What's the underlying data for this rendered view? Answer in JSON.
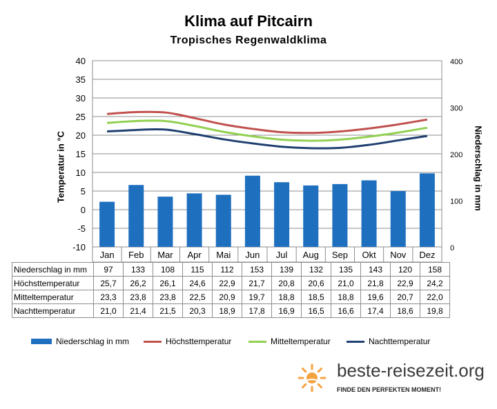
{
  "title": "Klima auf Pitcairn",
  "subtitle": "Tropisches Regenwaldklima",
  "chart_data": {
    "type": "bar",
    "categories": [
      "Jan",
      "Feb",
      "Mar",
      "Apr",
      "Mai",
      "Jun",
      "Jul",
      "Aug",
      "Sep",
      "Okt",
      "Nov",
      "Dez"
    ],
    "series": [
      {
        "name": "Niederschlag in mm",
        "type": "bar",
        "axis": "right",
        "color": "#1f6fbf",
        "values": [
          97,
          133,
          108,
          115,
          112,
          153,
          139,
          132,
          135,
          143,
          120,
          158
        ]
      },
      {
        "name": "Höchsttemperatur",
        "type": "line",
        "axis": "left",
        "color": "#c0504d",
        "values": [
          25.7,
          26.2,
          26.1,
          24.6,
          22.9,
          21.7,
          20.8,
          20.6,
          21.0,
          21.8,
          22.9,
          24.2
        ]
      },
      {
        "name": "Mitteltemperatur",
        "type": "line",
        "axis": "left",
        "color": "#92d050",
        "values": [
          23.3,
          23.8,
          23.8,
          22.5,
          20.9,
          19.7,
          18.8,
          18.5,
          18.8,
          19.6,
          20.7,
          22.0
        ]
      },
      {
        "name": "Nachttemperatur",
        "type": "line",
        "axis": "left",
        "color": "#1f3f6f",
        "values": [
          21.0,
          21.4,
          21.5,
          20.3,
          18.9,
          17.8,
          16.9,
          16.5,
          16.6,
          17.4,
          18.6,
          19.8
        ]
      }
    ],
    "ylabel_left": "Temperatur in °C",
    "ylabel_right": "Niederschlag in mm",
    "ylim_left": [
      -10,
      40
    ],
    "ylim_right": [
      0,
      400
    ],
    "yticks_left": [
      -10,
      -5,
      0,
      5,
      10,
      15,
      20,
      25,
      30,
      35,
      40
    ],
    "yticks_right": [
      0,
      100,
      200,
      300,
      400
    ],
    "grid": true,
    "legend": "bottom",
    "table_rows": [
      {
        "label": "Niederschlag in mm",
        "values": [
          "97",
          "133",
          "108",
          "115",
          "112",
          "153",
          "139",
          "132",
          "135",
          "143",
          "120",
          "158"
        ]
      },
      {
        "label": "Höchsttemperatur",
        "values": [
          "25,7",
          "26,2",
          "26,1",
          "24,6",
          "22,9",
          "21,7",
          "20,8",
          "20,6",
          "21,0",
          "21,8",
          "22,9",
          "24,2"
        ]
      },
      {
        "label": "Mitteltemperatur",
        "values": [
          "23,3",
          "23,8",
          "23,8",
          "22,5",
          "20,9",
          "19,7",
          "18,8",
          "18,5",
          "18,8",
          "19,6",
          "20,7",
          "22,0"
        ]
      },
      {
        "label": "Nachttemperatur",
        "values": [
          "21,0",
          "21,4",
          "21,5",
          "20,3",
          "18,9",
          "17,8",
          "16,9",
          "16,5",
          "16,6",
          "17,4",
          "18,6",
          "19,8"
        ]
      }
    ]
  },
  "brand": {
    "name": "beste-reisezeit.org",
    "slogan": "FINDE DEN PERFEKTEN MOMENT!",
    "icon": "sun-logo-icon",
    "accent": "#f4a340"
  }
}
